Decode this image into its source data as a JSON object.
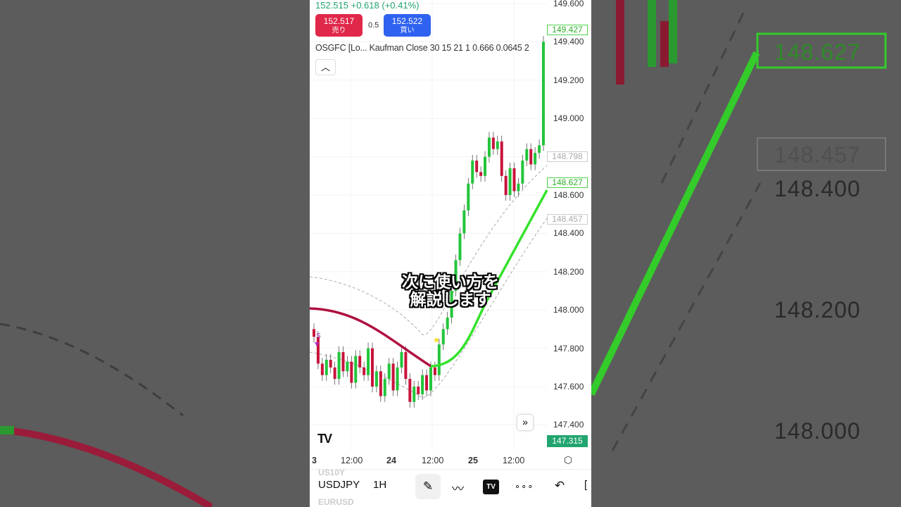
{
  "quote": {
    "price": "152.515",
    "change": "+0.618 (+0.41%)"
  },
  "sell": {
    "price": "152.517",
    "label": "売り"
  },
  "buy": {
    "price": "152.522",
    "label": "買い"
  },
  "spread": "0.5",
  "indicator": "OSGFC [Lo... Kaufman Close 30 15 21 1 0.666 0.0645 2",
  "collapse_icon": "chevron-up",
  "price_axis": [
    "149.600",
    "149.400",
    "149.200",
    "149.000",
    "148.600",
    "148.400",
    "148.200",
    "148.000",
    "147.800",
    "147.600",
    "147.400"
  ],
  "price_tags": {
    "upper": "149.427",
    "band_upper": "148.798",
    "line": "148.627",
    "band_lower": "148.457",
    "last": "147.315"
  },
  "time_axis": [
    "3",
    "12:00",
    "24",
    "12:00",
    "25",
    "12:00"
  ],
  "signal_label": "S",
  "caption": [
    "次に使い方を",
    "解説します"
  ],
  "toolbar": {
    "symbol": "USDJPY",
    "interval": "1H",
    "ghost_above": "US10Y",
    "ghost_below": "EURUSD"
  },
  "colors": {
    "up": "#22c53a",
    "down": "#c8143c",
    "line_bull": "#35e22c",
    "line_bear": "#b01040",
    "green_tag": "#22a56f"
  },
  "background_labels": [
    "148.627",
    "148.457",
    "148.400",
    "148.200",
    "148.000"
  ],
  "chart_data": {
    "type": "candlestick",
    "symbol": "USDJPY",
    "interval": "1H",
    "closes": [
      147.86,
      147.72,
      147.66,
      147.74,
      147.7,
      147.64,
      147.78,
      147.68,
      147.73,
      147.62,
      147.76,
      147.7,
      147.66,
      147.8,
      147.6,
      147.68,
      147.55,
      147.64,
      147.72,
      147.58,
      147.7,
      147.78,
      147.64,
      147.52,
      147.6,
      147.56,
      147.66,
      147.58,
      147.7,
      147.66,
      147.82,
      147.9,
      147.96,
      148.1,
      148.26,
      148.4,
      148.52,
      148.66,
      148.78,
      148.72,
      148.7,
      148.8,
      148.9,
      148.84,
      148.88,
      148.7,
      148.6,
      148.74,
      148.62,
      148.66,
      148.78,
      148.84,
      148.76,
      148.82,
      148.86,
      149.4
    ],
    "ylim": [
      147.315,
      149.65
    ]
  }
}
